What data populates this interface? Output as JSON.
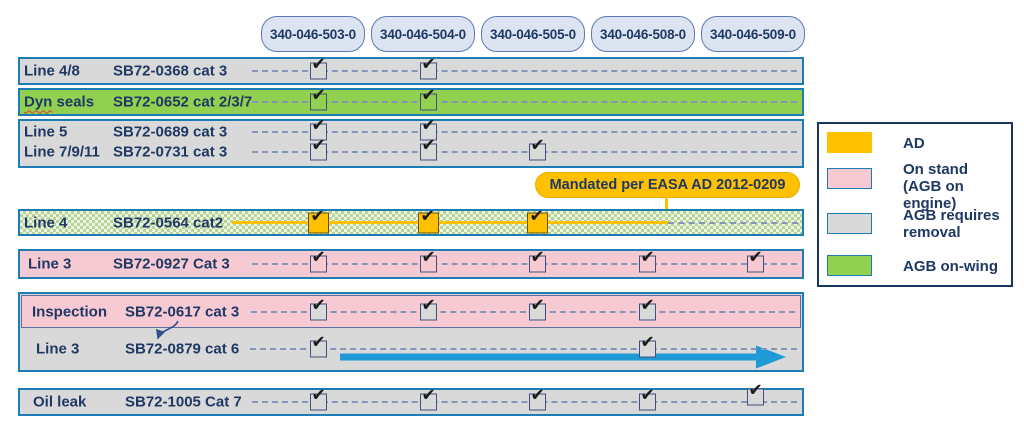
{
  "columns": [
    "340-046-503-0",
    "340-046-504-0",
    "340-046-505-0",
    "340-046-508-0",
    "340-046-509-0"
  ],
  "check_glyph": "✔",
  "rows": [
    {
      "label": "Line 4/8",
      "sb": "SB72-0368 cat 3",
      "status": "AGB requires removal",
      "checks": [
        1,
        1,
        0,
        0,
        0
      ]
    },
    {
      "label_parts": [
        "Dyn",
        " seals"
      ],
      "sb": "SB72-0652 cat 2/3/7",
      "status": "AGB on-wing",
      "checks": [
        1,
        1,
        0,
        0,
        0
      ]
    },
    {
      "label": "Line 5",
      "sb": "SB72-0689 cat 3",
      "status": "AGB requires removal",
      "checks": [
        1,
        1,
        0,
        0,
        0
      ]
    },
    {
      "label": "Line 7/9/11",
      "sb": "SB72-0731 cat 3",
      "status": "AGB requires removal",
      "checks": [
        1,
        1,
        1,
        0,
        0
      ]
    },
    {
      "label": "Line 4",
      "sb": "SB72-0564 cat2",
      "status": "AD",
      "checks": [
        1,
        1,
        1,
        0,
        0
      ]
    },
    {
      "label": "Line 3",
      "sb": "SB72-0927 Cat 3",
      "status": "On stand (AGB on engine)",
      "checks": [
        1,
        1,
        1,
        1,
        1
      ]
    },
    {
      "label": "Inspection",
      "sb": "SB72-0617 cat 3",
      "status": "On stand (AGB on engine)",
      "checks": [
        1,
        1,
        1,
        1,
        0
      ]
    },
    {
      "label": "Line 3",
      "sb": "SB72-0879 cat 6",
      "status": "AGB requires removal",
      "checks": [
        1,
        0,
        0,
        1,
        0
      ]
    },
    {
      "label": "Oil leak",
      "sb": "SB72-1005 Cat 7",
      "status": "AGB requires removal",
      "checks": [
        1,
        1,
        1,
        1,
        1
      ]
    }
  ],
  "callout": {
    "text": "Mandated per EASA AD 2012-0209"
  },
  "legend": {
    "items": [
      {
        "label": "AD",
        "color": "#ffc000"
      },
      {
        "label": "On stand (AGB on engine)",
        "color": "#f7cad3"
      },
      {
        "label": "AGB requires removal",
        "color": "#d9d9d9"
      },
      {
        "label": "AGB on-wing",
        "color": "#92d050"
      }
    ]
  },
  "colors": {
    "navy_text": "#1f3864",
    "bar_border_blue": "#1b7db4",
    "row_gray": "#d9d9d9",
    "row_green": "#92d050",
    "row_pink": "#f7cad3",
    "accent_orange": "#ffc000",
    "pill_fill": "#dce4f1",
    "pill_border": "#5d79b4",
    "dashed_line": "#8496b8",
    "arrow_blue": "#1e9ad6",
    "legend_border": "#17365d",
    "check_mark": "#1a1a1a"
  }
}
